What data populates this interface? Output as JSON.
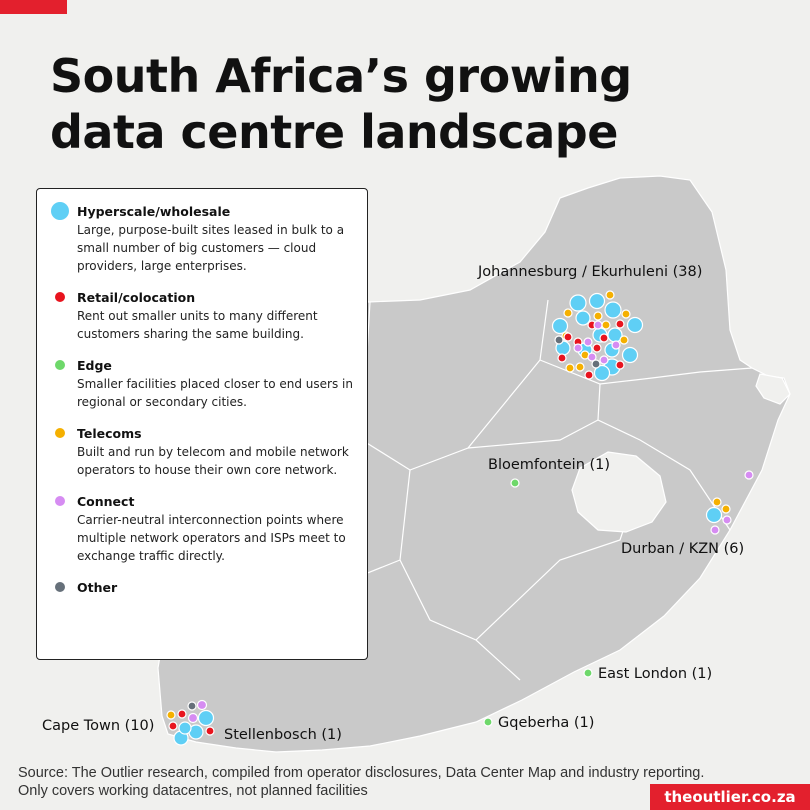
{
  "title": "South Africa’s growing\ndata centre landscape",
  "legend": [
    {
      "key": "hyperscale",
      "title": "Hyperscale/wholesale",
      "desc": "Large, purpose-built sites leased in bulk to a small number of big customers — cloud providers, large enterprises.",
      "color": "#5fcff5",
      "dot_size": "large"
    },
    {
      "key": "retail",
      "title": "Retail/colocation",
      "desc": "Rent out smaller units to many different customers sharing the same building.",
      "color": "#e8141e",
      "dot_size": "small"
    },
    {
      "key": "edge",
      "title": "Edge",
      "desc": "Smaller facilities placed closer to end users in regional or secondary cities.",
      "color": "#6ed86a",
      "dot_size": "small"
    },
    {
      "key": "telecoms",
      "title": "Telecoms",
      "desc": "Built and run by telecom and mobile network operators to house their own core network.",
      "color": "#f5b000",
      "dot_size": "small"
    },
    {
      "key": "connect",
      "title": "Connect",
      "desc": "Carrier-neutral interconnection points where multiple network operators and ISPs meet to exchange traffic directly.",
      "color": "#d68cf2",
      "dot_size": "small"
    },
    {
      "key": "other",
      "title": "Other",
      "desc": "",
      "color": "#66707a",
      "dot_size": "small"
    }
  ],
  "locations": [
    {
      "key": "jhb",
      "label": "Johannesburg / Ekurhuleni (38)"
    },
    {
      "key": "bloem",
      "label": "Bloemfontein (1)"
    },
    {
      "key": "durban",
      "label": "Durban / KZN (6)"
    },
    {
      "key": "eastlondon",
      "label": "East London (1)"
    },
    {
      "key": "gqeberha",
      "label": "Gqeberha (1)"
    },
    {
      "key": "capetown",
      "label": "Cape Town (10)"
    },
    {
      "key": "stellenbosch",
      "label": "Stellenbosch (1)"
    }
  ],
  "colors": {
    "land": "#c9c9c9",
    "lesotho": "#f0f0ee",
    "ocean": "#f0f0ee",
    "border": "#ffffff",
    "accent": "#e3202d"
  },
  "source": "Source: The Outlier research, compiled from operator disclosures, Data Center Map and industry reporting. Only covers working datacentres, not planned facilities",
  "brand": "theoutlier.co.za"
}
